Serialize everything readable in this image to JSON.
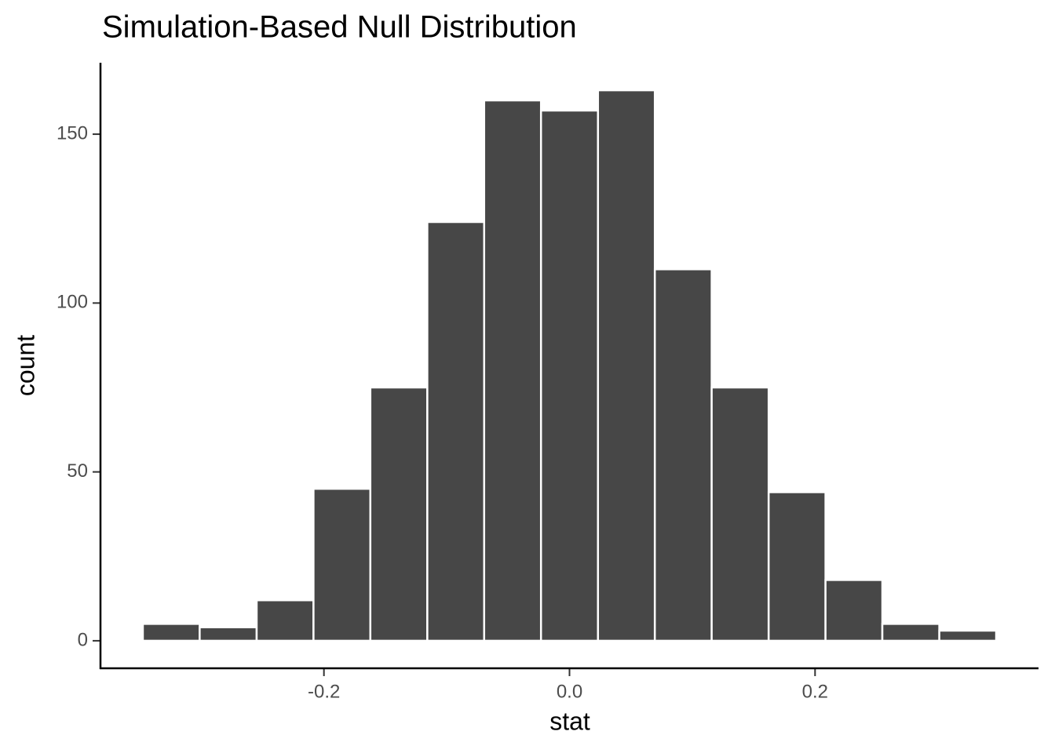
{
  "chart_data": {
    "type": "histogram",
    "title": "Simulation-Based Null Distribution",
    "x_label": "stat",
    "y_label": "count",
    "bins": [
      -0.3475,
      -0.3012,
      -0.2548,
      -0.2085,
      -0.1622,
      -0.1158,
      -0.0695,
      -0.0232,
      0.0232,
      0.0695,
      0.1158,
      0.1622,
      0.2085,
      0.2548,
      0.3012,
      0.3475
    ],
    "values": [
      5,
      4,
      12,
      45,
      75,
      124,
      160,
      157,
      163,
      110,
      75,
      44,
      18,
      5,
      3
    ],
    "color": "#474747",
    "xlim": [
      -0.382,
      0.382
    ],
    "xticks": [
      -0.2,
      {
        "value": 0,
        "label": "0.0"
      },
      0.2
    ],
    "ylim": [
      -8.15,
      171.15
    ],
    "yticks": [
      0,
      50,
      100,
      150
    ]
  }
}
